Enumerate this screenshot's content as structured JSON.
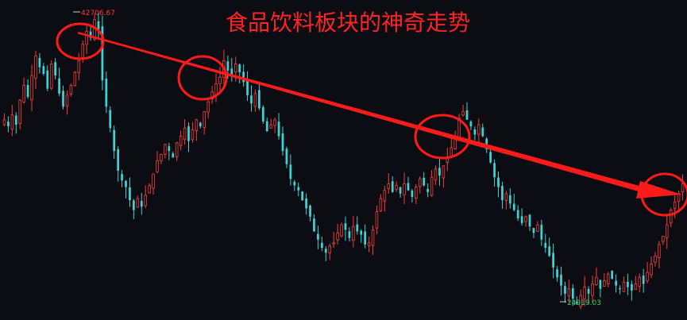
{
  "chart_data": {
    "type": "candlestick",
    "title": "食品饮料板块的神奇走势",
    "xlabel": "",
    "ylabel": "",
    "ylim": [
      24000,
      43500
    ],
    "grid": false,
    "legend": "none",
    "colors": {
      "background": "#0b0d12",
      "up": "#ff3b3b",
      "down": "#3fd3d8",
      "annotation": "#ff1a1a",
      "high_label": "#ff3a3a",
      "low_label": "#2fd06a"
    },
    "annotations": {
      "max_label": "42706.67",
      "min_label": "24919.03",
      "highlighted_peaks": 4,
      "trend_arrow": "descending"
    },
    "closes": [
      36200,
      35800,
      36500,
      35900,
      37400,
      38300,
      37600,
      38900,
      40100,
      39400,
      39000,
      38100,
      39600,
      38900,
      37800,
      37000,
      37700,
      38300,
      39100,
      39800,
      40800,
      41600,
      41200,
      42300,
      41700,
      38600,
      37000,
      35700,
      34300,
      33100,
      32500,
      32100,
      31300,
      30700,
      31400,
      30900,
      31600,
      32200,
      32900,
      33700,
      34100,
      34700,
      34300,
      33900,
      34800,
      35200,
      35700,
      34900,
      35600,
      36200,
      35800,
      36700,
      37300,
      37900,
      38400,
      38800,
      39800,
      39200,
      38900,
      39600,
      39100,
      38500,
      37700,
      37200,
      37800,
      36900,
      36100,
      35500,
      35900,
      36200,
      35200,
      34300,
      33500,
      32600,
      32200,
      31900,
      31300,
      30800,
      30300,
      29400,
      28900,
      28400,
      28100,
      28500,
      28700,
      29300,
      29800,
      29500,
      29000,
      29700,
      29400,
      29200,
      28600,
      28700,
      29500,
      30600,
      31400,
      31900,
      32300,
      31800,
      32200,
      31700,
      32300,
      31900,
      31500,
      32100,
      32600,
      32200,
      31800,
      32700,
      33200,
      32800,
      33400,
      33900,
      34500,
      35100,
      36300,
      36700,
      36200,
      35800,
      35300,
      35900,
      35200,
      34400,
      33600,
      32700,
      32100,
      31300,
      31700,
      31100,
      30700,
      30200,
      29900,
      30300,
      29700,
      29300,
      29800,
      28900,
      28400,
      27900,
      27200,
      26600,
      26100,
      25600,
      25900,
      25300,
      25000,
      25500,
      26000,
      25600,
      26200,
      26600,
      25900,
      26400,
      26800,
      26500,
      26100,
      25900,
      26300,
      26000,
      25800,
      26200,
      26600,
      26200,
      26900,
      27400,
      27900,
      28600,
      29100,
      29800,
      30700,
      31200,
      31700,
      32300
    ]
  }
}
